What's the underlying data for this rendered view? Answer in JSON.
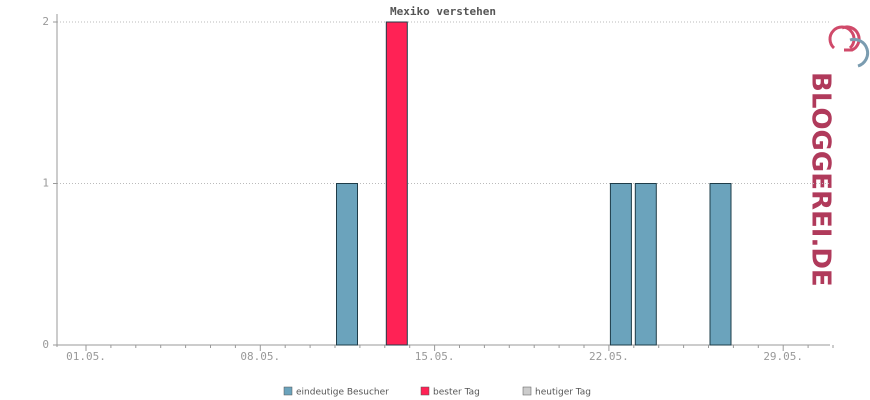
{
  "chart_data": {
    "type": "bar",
    "title": "Mexiko verstehen",
    "logo": "BLOGGEREI.DE",
    "categories": [
      "01.05.",
      null,
      null,
      null,
      null,
      null,
      null,
      "08.05.",
      null,
      null,
      null,
      null,
      null,
      null,
      "15.05.",
      null,
      null,
      null,
      null,
      null,
      null,
      "22.05.",
      null,
      null,
      null,
      null,
      null,
      null,
      "29.05.",
      null,
      null
    ],
    "series": [
      {
        "name": "eindeutige Besucher",
        "color": "#6ba3bc",
        "values": [
          0,
          0,
          0,
          0,
          0,
          0,
          0,
          0,
          0,
          0,
          1,
          0,
          null,
          0,
          0,
          0,
          0,
          0,
          0,
          0,
          0,
          1,
          1,
          0,
          0,
          1,
          0,
          0,
          0,
          0,
          0
        ]
      },
      {
        "name": "bester Tag",
        "color": "#ff2255",
        "values": [
          null,
          null,
          null,
          null,
          null,
          null,
          null,
          null,
          null,
          null,
          null,
          null,
          2,
          null,
          null,
          null,
          null,
          null,
          null,
          null,
          null,
          null,
          null,
          null,
          null,
          null,
          null,
          null,
          null,
          null,
          null
        ]
      },
      {
        "name": "heutiger Tag",
        "color": "#cccccc",
        "values": [
          null,
          null,
          null,
          null,
          null,
          null,
          null,
          null,
          null,
          null,
          null,
          null,
          null,
          null,
          null,
          null,
          null,
          null,
          null,
          null,
          null,
          null,
          null,
          null,
          null,
          null,
          null,
          null,
          null,
          null,
          null
        ]
      }
    ],
    "ylim": [
      0,
      2
    ],
    "yticks": [
      0,
      1,
      2
    ],
    "grid": true
  }
}
